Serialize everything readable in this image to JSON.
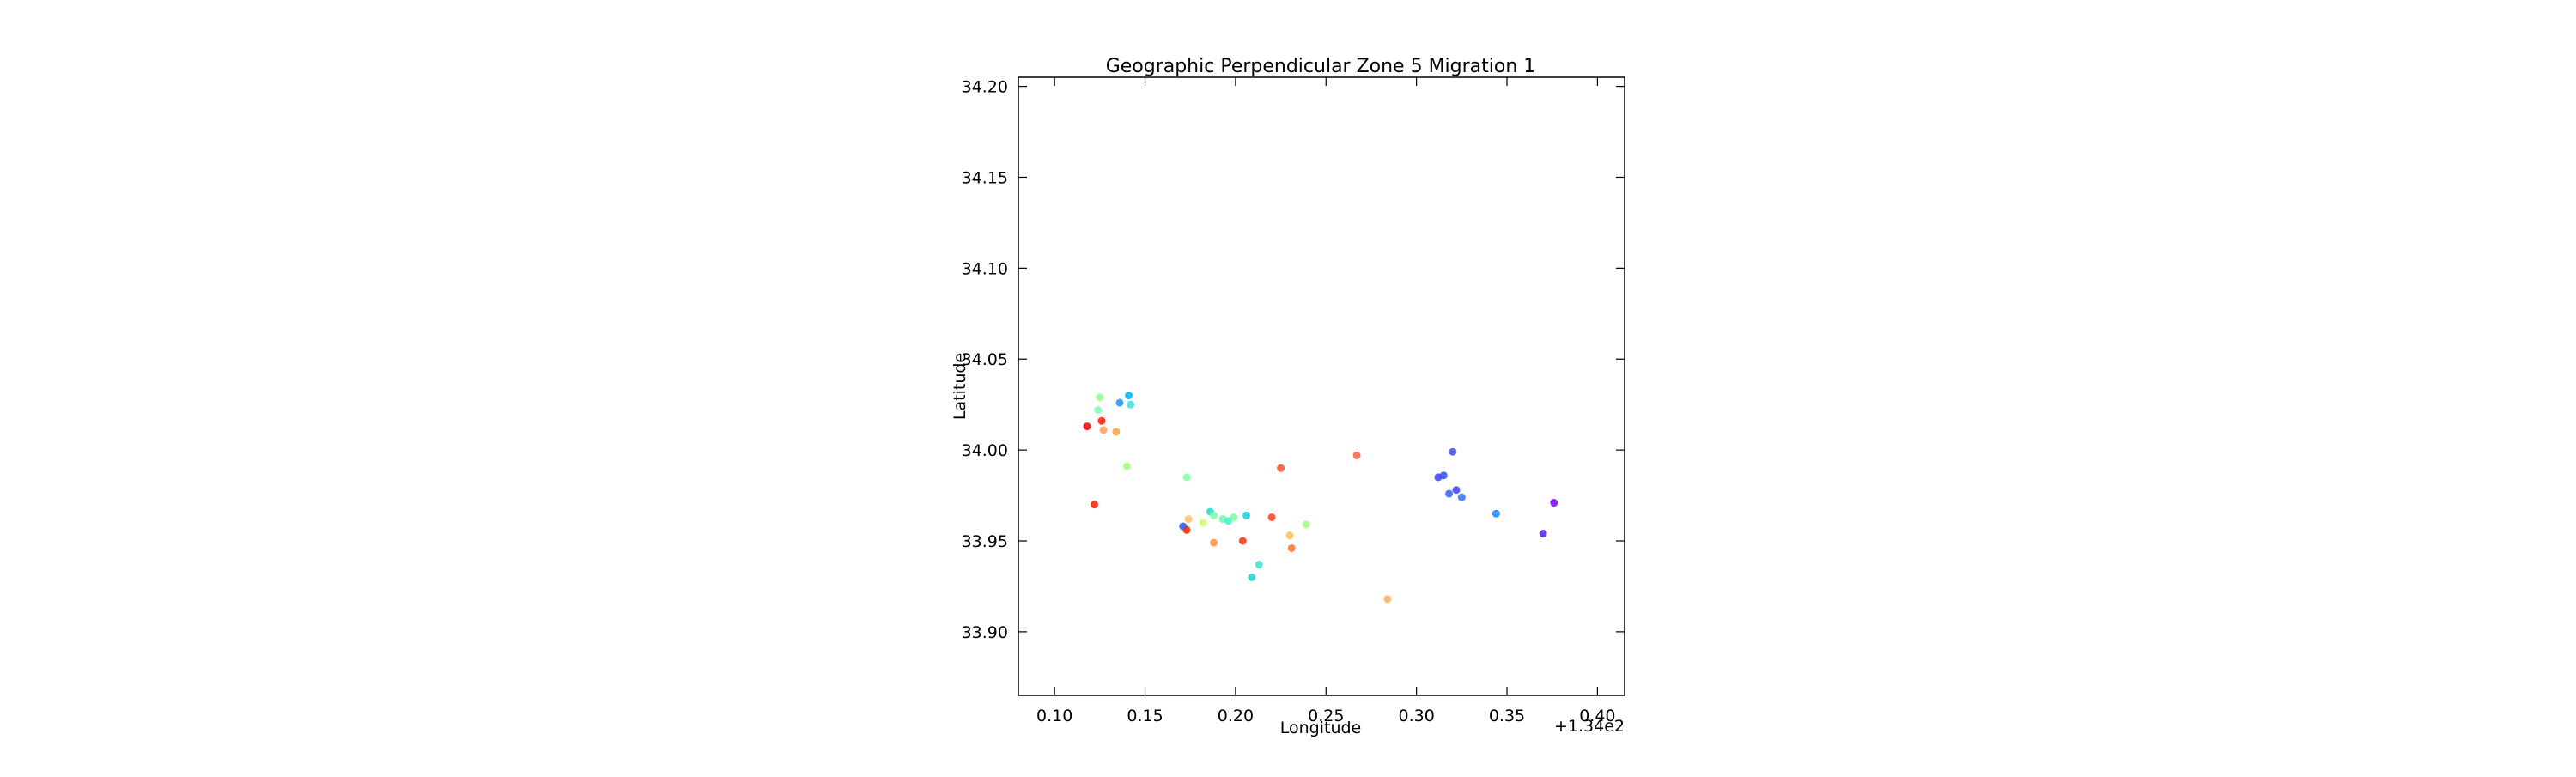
{
  "chart_data": {
    "type": "scatter",
    "title": "Geographic Perpendicular Zone 5 Migration 1",
    "xlabel": "Longitude",
    "ylabel": "Latitude",
    "x_offset_label": "+1.34e2",
    "xlim": [
      134.08,
      134.415
    ],
    "ylim": [
      33.865,
      34.205
    ],
    "x_ticks": [
      {
        "value": 134.1,
        "label": "0.10"
      },
      {
        "value": 134.15,
        "label": "0.15"
      },
      {
        "value": 134.2,
        "label": "0.20"
      },
      {
        "value": 134.25,
        "label": "0.25"
      },
      {
        "value": 134.3,
        "label": "0.30"
      },
      {
        "value": 134.35,
        "label": "0.35"
      },
      {
        "value": 134.4,
        "label": "0.40"
      }
    ],
    "y_ticks": [
      {
        "value": 33.9,
        "label": "33.90"
      },
      {
        "value": 33.95,
        "label": "33.95"
      },
      {
        "value": 34.0,
        "label": "34.00"
      },
      {
        "value": 34.05,
        "label": "34.05"
      },
      {
        "value": 34.1,
        "label": "34.10"
      },
      {
        "value": 34.15,
        "label": "34.15"
      },
      {
        "value": 34.2,
        "label": "34.20"
      }
    ],
    "grid": false,
    "legend": "none",
    "points": [
      {
        "x": 134.118,
        "y": 34.013,
        "color": "#ff0000"
      },
      {
        "x": 134.126,
        "y": 34.016,
        "color": "#ff1a00"
      },
      {
        "x": 134.127,
        "y": 34.011,
        "color": "#ffa060"
      },
      {
        "x": 134.134,
        "y": 34.01,
        "color": "#ffa040"
      },
      {
        "x": 134.124,
        "y": 34.022,
        "color": "#7fffb0"
      },
      {
        "x": 134.125,
        "y": 34.029,
        "color": "#90ff90"
      },
      {
        "x": 134.136,
        "y": 34.026,
        "color": "#1e90ff"
      },
      {
        "x": 134.141,
        "y": 34.03,
        "color": "#00b0ff"
      },
      {
        "x": 134.142,
        "y": 34.025,
        "color": "#40e0e0"
      },
      {
        "x": 134.14,
        "y": 33.991,
        "color": "#a0ff80"
      },
      {
        "x": 134.122,
        "y": 33.97,
        "color": "#ff1a00"
      },
      {
        "x": 134.173,
        "y": 33.985,
        "color": "#80ffa0"
      },
      {
        "x": 134.171,
        "y": 33.958,
        "color": "#1060ff"
      },
      {
        "x": 134.173,
        "y": 33.956,
        "color": "#ff2000"
      },
      {
        "x": 134.174,
        "y": 33.962,
        "color": "#ffc060"
      },
      {
        "x": 134.182,
        "y": 33.96,
        "color": "#d0ff70"
      },
      {
        "x": 134.186,
        "y": 33.966,
        "color": "#20e0c0"
      },
      {
        "x": 134.188,
        "y": 33.964,
        "color": "#80ffa0"
      },
      {
        "x": 134.188,
        "y": 33.949,
        "color": "#ff9040"
      },
      {
        "x": 134.193,
        "y": 33.962,
        "color": "#60ffb0"
      },
      {
        "x": 134.196,
        "y": 33.961,
        "color": "#40f0d0"
      },
      {
        "x": 134.199,
        "y": 33.963,
        "color": "#80ffa0"
      },
      {
        "x": 134.204,
        "y": 33.95,
        "color": "#ff3010"
      },
      {
        "x": 134.206,
        "y": 33.964,
        "color": "#10d0e0"
      },
      {
        "x": 134.209,
        "y": 33.93,
        "color": "#20d0d0"
      },
      {
        "x": 134.213,
        "y": 33.937,
        "color": "#40e0d0"
      },
      {
        "x": 134.22,
        "y": 33.963,
        "color": "#ff4020"
      },
      {
        "x": 134.225,
        "y": 33.99,
        "color": "#ff5020"
      },
      {
        "x": 134.23,
        "y": 33.953,
        "color": "#ffc050"
      },
      {
        "x": 134.231,
        "y": 33.946,
        "color": "#ff7030"
      },
      {
        "x": 134.239,
        "y": 33.959,
        "color": "#a0ff80"
      },
      {
        "x": 134.267,
        "y": 33.997,
        "color": "#ff6040"
      },
      {
        "x": 134.284,
        "y": 33.918,
        "color": "#ffb060"
      },
      {
        "x": 134.312,
        "y": 33.985,
        "color": "#4040f0"
      },
      {
        "x": 134.315,
        "y": 33.986,
        "color": "#3050ff"
      },
      {
        "x": 134.318,
        "y": 33.976,
        "color": "#3060ff"
      },
      {
        "x": 134.32,
        "y": 33.999,
        "color": "#4050f0"
      },
      {
        "x": 134.322,
        "y": 33.978,
        "color": "#4040f0"
      },
      {
        "x": 134.325,
        "y": 33.974,
        "color": "#3070ff"
      },
      {
        "x": 134.344,
        "y": 33.965,
        "color": "#1080ff"
      },
      {
        "x": 134.37,
        "y": 33.954,
        "color": "#5020e0"
      },
      {
        "x": 134.376,
        "y": 33.971,
        "color": "#8000ff"
      }
    ]
  }
}
